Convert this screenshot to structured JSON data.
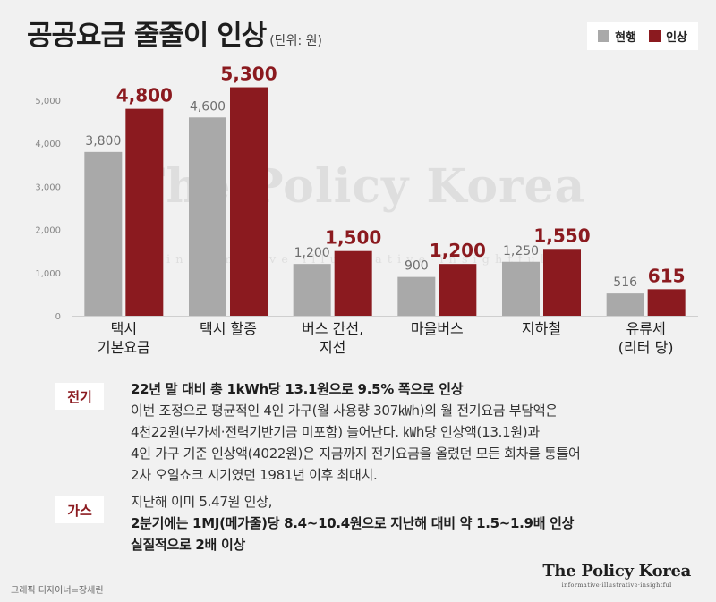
{
  "header": {
    "title": "공공요금 줄줄이 인상",
    "unit": "(단위: 원)"
  },
  "legend": [
    {
      "label": "현행",
      "color": "#a9a9a9"
    },
    {
      "label": "인상",
      "color": "#8b1a1f"
    }
  ],
  "chart_data": {
    "type": "bar",
    "categories": [
      [
        "택시",
        "기본요금"
      ],
      [
        "택시 할증"
      ],
      [
        "버스 간선,",
        "지선"
      ],
      [
        "마을버스"
      ],
      [
        "지하철"
      ],
      [
        "유류세",
        "(리터 당)"
      ]
    ],
    "series": [
      {
        "name": "현행",
        "values": [
          3800,
          4600,
          1200,
          900,
          1250,
          516
        ],
        "labels": [
          "3,800",
          "4,600",
          "1,200",
          "900",
          "1,250",
          "516"
        ]
      },
      {
        "name": "인상",
        "values": [
          4800,
          5300,
          1500,
          1200,
          1550,
          615
        ],
        "labels": [
          "4,800",
          "5,300",
          "1,500",
          "1,200",
          "1,550",
          "615"
        ]
      }
    ],
    "yticks": [
      0,
      1000,
      2000,
      3000,
      4000,
      5000
    ],
    "ytick_labels": [
      "0",
      "1,000",
      "2,000",
      "3,000",
      "4,000",
      "5,000"
    ],
    "ylim": [
      0,
      5000
    ],
    "grid": false,
    "legend_position": "top-right"
  },
  "watermark": {
    "name": "The Policy Korea",
    "sub": "informative·illustrative·insightful"
  },
  "notes": [
    {
      "tag": "전기",
      "lines": [
        {
          "text": "22년 말 대비 총 1kWh당 13.1원으로 9.5% 폭으로 인상",
          "bold": true
        },
        {
          "text": "이번 조정으로 평균적인 4인 가구(월 사용량 307㎾h)의 월 전기요금 부담액은",
          "bold": false
        },
        {
          "text": "4천22원(부가세·전력기반기금 미포함) 늘어난다. ㎾h당 인상액(13.1원)과",
          "bold": false
        },
        {
          "text": "4인 가구 기준 인상액(4022원)은 지금까지 전기요금을 올렸던 모든 회차를 통틀어",
          "bold": false
        },
        {
          "text": "2차 오일쇼크 시기였던 1981년 이후 최대치.",
          "bold": false
        }
      ]
    },
    {
      "tag": "가스",
      "lines": [
        {
          "text": "지난해 이미 5.47원 인상,",
          "bold": false
        },
        {
          "text": "2분기에는 1MJ(메가줄)당 8.4~10.4원으로 지난해 대비 약 1.5~1.9배 인상",
          "bold": true
        },
        {
          "text": "실질적으로 2배 이상",
          "bold": true
        }
      ]
    }
  ],
  "credit": "그래픽 디자이너=장세린",
  "brand": {
    "name": "The Policy Korea",
    "sub": "informative·illustrative·insightful"
  }
}
